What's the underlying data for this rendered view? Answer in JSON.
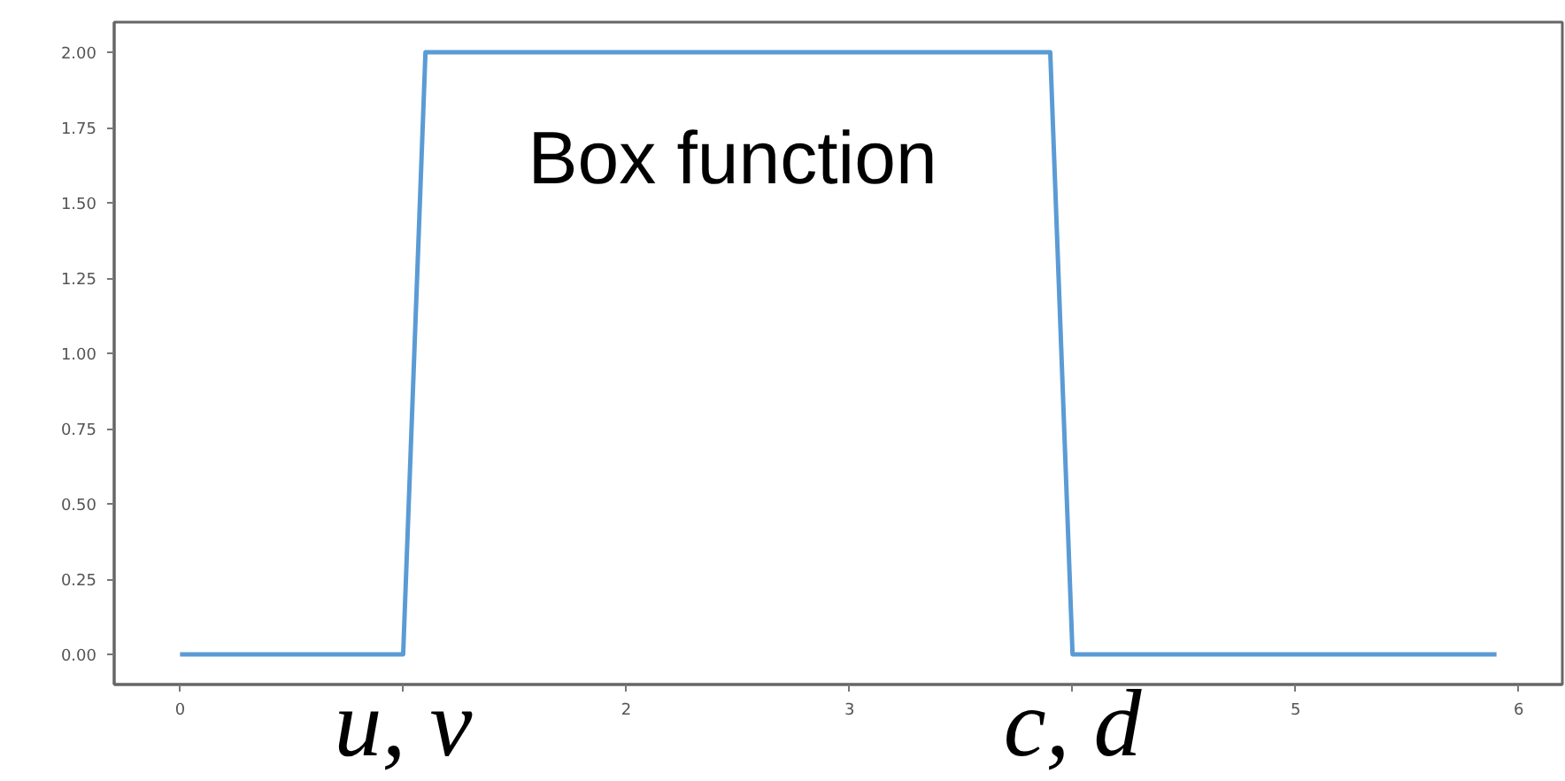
{
  "chart_data": {
    "type": "line",
    "x": [
      0,
      1.0,
      1.1,
      3.9,
      4.0,
      5.9
    ],
    "series": [
      {
        "color": "#5b9bd5",
        "values": [
          0,
          0,
          2,
          2,
          0,
          0
        ]
      }
    ],
    "xlim": [
      -0.295,
      6.195
    ],
    "ylim": [
      -0.1,
      2.1
    ],
    "xticks": [
      0,
      {
        "value": 1,
        "label": null
      },
      2,
      3,
      {
        "value": 4,
        "label": null
      },
      5,
      6
    ],
    "yticks": [
      {
        "value": 0,
        "label": "0.00"
      },
      {
        "value": 0.25,
        "label": "0.25"
      },
      {
        "value": 0.5,
        "label": "0.50"
      },
      {
        "value": 0.75,
        "label": "0.75"
      },
      {
        "value": 1,
        "label": "1.00"
      },
      {
        "value": 1.25,
        "label": "1.25"
      },
      {
        "value": 1.5,
        "label": "1.50"
      },
      {
        "value": 1.75,
        "label": "1.75"
      },
      {
        "value": 2,
        "label": "2.00"
      }
    ],
    "annotations": [
      "Box function",
      "u, v",
      "c, d"
    ]
  }
}
